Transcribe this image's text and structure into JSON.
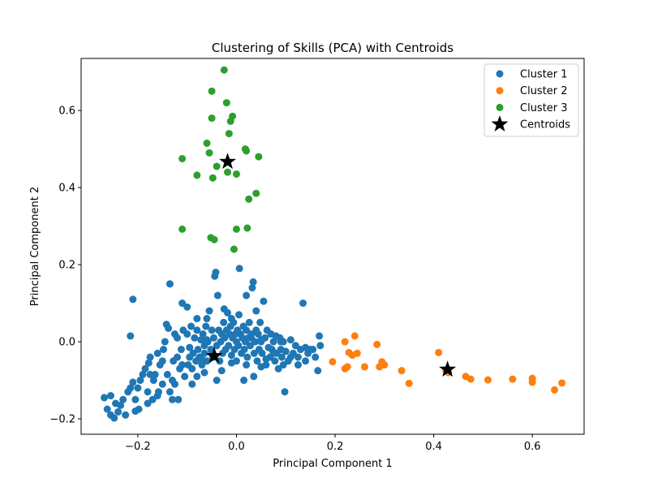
{
  "chart_data": {
    "type": "scatter",
    "title": "Clustering of Skills (PCA) with Centroids",
    "xlabel": "Principal Component 1",
    "ylabel": "Principal Component 2",
    "xlim": [
      -0.315,
      0.705
    ],
    "ylim": [
      -0.24,
      0.735
    ],
    "xticks": [
      -0.2,
      0.0,
      0.2,
      0.4,
      0.6
    ],
    "xtick_labels": [
      "−0.2",
      "0.0",
      "0.2",
      "0.4",
      "0.6"
    ],
    "yticks": [
      -0.2,
      0.0,
      0.2,
      0.4,
      0.6
    ],
    "ytick_labels": [
      "−0.2",
      "0.0",
      "0.2",
      "0.4",
      "0.6"
    ],
    "grid": false,
    "legend_position": "top-right",
    "series": [
      {
        "name": "Cluster 1",
        "color": "#1f77b4",
        "marker": "circle",
        "points": [
          [
            -0.268,
            -0.145
          ],
          [
            -0.262,
            -0.175
          ],
          [
            -0.255,
            -0.19
          ],
          [
            -0.248,
            -0.198
          ],
          [
            -0.24,
            -0.182
          ],
          [
            -0.235,
            -0.165
          ],
          [
            -0.23,
            -0.15
          ],
          [
            -0.225,
            -0.19
          ],
          [
            -0.22,
            -0.13
          ],
          [
            -0.215,
            -0.12
          ],
          [
            -0.21,
            -0.105
          ],
          [
            -0.205,
            -0.15
          ],
          [
            -0.2,
            -0.12
          ],
          [
            -0.198,
            -0.175
          ],
          [
            -0.195,
            -0.1
          ],
          [
            -0.19,
            -0.085
          ],
          [
            -0.185,
            -0.07
          ],
          [
            -0.18,
            -0.13
          ],
          [
            -0.178,
            -0.055
          ],
          [
            -0.175,
            -0.04
          ],
          [
            -0.17,
            -0.15
          ],
          [
            -0.168,
            -0.1
          ],
          [
            -0.165,
            -0.085
          ],
          [
            -0.16,
            -0.03
          ],
          [
            -0.158,
            -0.13
          ],
          [
            -0.155,
            -0.06
          ],
          [
            -0.15,
            -0.11
          ],
          [
            -0.148,
            -0.02
          ],
          [
            -0.145,
            0.0
          ],
          [
            -0.142,
            0.045
          ],
          [
            -0.14,
            -0.085
          ],
          [
            -0.138,
            0.035
          ],
          [
            -0.135,
            -0.13
          ],
          [
            -0.13,
            -0.1
          ],
          [
            -0.128,
            -0.05
          ],
          [
            -0.125,
            0.02
          ],
          [
            -0.12,
            -0.04
          ],
          [
            -0.118,
            -0.15
          ],
          [
            -0.115,
            -0.07
          ],
          [
            -0.112,
            -0.02
          ],
          [
            -0.11,
            0.1
          ],
          [
            -0.108,
            0.03
          ],
          [
            -0.105,
            -0.09
          ],
          [
            -0.1,
            0.09
          ],
          [
            -0.098,
            -0.06
          ],
          [
            -0.095,
            -0.015
          ],
          [
            -0.092,
            0.04
          ],
          [
            -0.09,
            -0.07
          ],
          [
            -0.088,
            -0.03
          ],
          [
            -0.085,
            0.01
          ],
          [
            -0.082,
            -0.05
          ],
          [
            -0.08,
            0.06
          ],
          [
            -0.078,
            -0.02
          ],
          [
            -0.075,
            -0.04
          ],
          [
            -0.072,
            0.005
          ],
          [
            -0.07,
            -0.06
          ],
          [
            -0.068,
            0.02
          ],
          [
            -0.065,
            -0.03
          ],
          [
            -0.062,
            0.04
          ],
          [
            -0.06,
            -0.05
          ],
          [
            -0.058,
            0.0
          ],
          [
            -0.055,
            0.08
          ],
          [
            -0.052,
            -0.02
          ],
          [
            -0.05,
            0.03
          ],
          [
            -0.048,
            -0.04
          ],
          [
            -0.046,
            0.01
          ],
          [
            -0.044,
            0.17
          ],
          [
            -0.042,
            0.18
          ],
          [
            -0.04,
            -0.01
          ],
          [
            -0.038,
            0.12
          ],
          [
            -0.036,
            0.03
          ],
          [
            -0.034,
            -0.05
          ],
          [
            -0.032,
            0.0
          ],
          [
            -0.03,
            0.02
          ],
          [
            -0.028,
            -0.03
          ],
          [
            -0.026,
            0.05
          ],
          [
            -0.024,
            0.01
          ],
          [
            -0.022,
            -0.02
          ],
          [
            -0.02,
            0.03
          ],
          [
            -0.018,
            0.075
          ],
          [
            -0.016,
            -0.01
          ],
          [
            -0.014,
            0.02
          ],
          [
            -0.012,
            0.04
          ],
          [
            -0.01,
            -0.035
          ],
          [
            -0.008,
            0.01
          ],
          [
            -0.006,
            0.05
          ],
          [
            -0.004,
            -0.02
          ],
          [
            -0.002,
            0.02
          ],
          [
            0.0,
            0.0
          ],
          [
            0.002,
            0.03
          ],
          [
            0.004,
            -0.01
          ],
          [
            0.006,
            0.19
          ],
          [
            0.008,
            0.02
          ],
          [
            0.01,
            -0.03
          ],
          [
            0.012,
            0.01
          ],
          [
            0.014,
            0.04
          ],
          [
            0.016,
            -0.02
          ],
          [
            0.018,
            0.0
          ],
          [
            0.02,
            0.03
          ],
          [
            0.022,
            -0.04
          ],
          [
            0.024,
            0.01
          ],
          [
            0.026,
            0.05
          ],
          [
            0.028,
            -0.01
          ],
          [
            0.03,
            0.02
          ],
          [
            0.032,
            0.14
          ],
          [
            0.034,
            0.155
          ],
          [
            0.036,
            -0.03
          ],
          [
            0.038,
            0.0
          ],
          [
            0.04,
            0.03
          ],
          [
            0.042,
            -0.05
          ],
          [
            0.044,
            0.02
          ],
          [
            0.046,
            -0.02
          ],
          [
            0.048,
            0.05
          ],
          [
            0.05,
            0.0
          ],
          [
            0.052,
            -0.03
          ],
          [
            0.055,
            0.105
          ],
          [
            0.058,
            0.01
          ],
          [
            0.06,
            -0.06
          ],
          [
            0.062,
            0.03
          ],
          [
            0.065,
            -0.015
          ],
          [
            0.068,
            -0.04
          ],
          [
            0.07,
            0.02
          ],
          [
            0.072,
            -0.02
          ],
          [
            0.075,
            0.0
          ],
          [
            0.078,
            -0.05
          ],
          [
            0.08,
            0.015
          ],
          [
            0.082,
            -0.03
          ],
          [
            0.085,
            -0.07
          ],
          [
            0.088,
            0.01
          ],
          [
            0.09,
            -0.02
          ],
          [
            0.092,
            -0.04
          ],
          [
            0.095,
            0.0
          ],
          [
            0.098,
            -0.13
          ],
          [
            0.1,
            -0.025
          ],
          [
            0.105,
            -0.05
          ],
          [
            0.11,
            0.005
          ],
          [
            0.115,
            -0.03
          ],
          [
            0.12,
            -0.01
          ],
          [
            0.125,
            -0.04
          ],
          [
            0.13,
            -0.02
          ],
          [
            0.135,
            0.1
          ],
          [
            0.14,
            -0.015
          ],
          [
            0.145,
            -0.03
          ],
          [
            0.15,
            -0.02
          ],
          [
            0.16,
            -0.04
          ],
          [
            0.165,
            -0.075
          ],
          [
            0.168,
            0.015
          ],
          [
            0.17,
            -0.01
          ],
          [
            -0.21,
            0.11
          ],
          [
            -0.215,
            0.015
          ],
          [
            -0.135,
            0.15
          ],
          [
            -0.06,
            0.005
          ],
          [
            -0.065,
            -0.01
          ],
          [
            0.05,
            0.005
          ],
          [
            0.09,
            0.0
          ],
          [
            0.03,
            0.01
          ],
          [
            -0.255,
            -0.14
          ],
          [
            -0.245,
            -0.16
          ],
          [
            -0.205,
            -0.18
          ],
          [
            -0.18,
            -0.16
          ],
          [
            -0.16,
            -0.14
          ],
          [
            -0.13,
            -0.15
          ],
          [
            -0.175,
            -0.085
          ],
          [
            -0.15,
            -0.05
          ],
          [
            -0.125,
            -0.11
          ],
          [
            -0.09,
            -0.11
          ],
          [
            -0.08,
            -0.09
          ],
          [
            -0.065,
            -0.08
          ],
          [
            -0.04,
            -0.1
          ],
          [
            -0.03,
            -0.075
          ],
          [
            -0.01,
            -0.055
          ],
          [
            0.0,
            -0.05
          ],
          [
            0.02,
            -0.06
          ],
          [
            0.035,
            -0.09
          ],
          [
            0.015,
            -0.1
          ],
          [
            0.05,
            -0.065
          ],
          [
            0.06,
            -0.045
          ],
          [
            0.075,
            -0.03
          ],
          [
            0.095,
            -0.06
          ],
          [
            0.11,
            -0.04
          ],
          [
            0.125,
            -0.06
          ],
          [
            0.14,
            -0.05
          ],
          [
            0.155,
            -0.02
          ],
          [
            -0.11,
            -0.06
          ],
          [
            -0.095,
            -0.04
          ],
          [
            -0.07,
            -0.045
          ],
          [
            -0.05,
            -0.03
          ],
          [
            -0.01,
            0.06
          ],
          [
            0.005,
            0.07
          ],
          [
            -0.025,
            0.085
          ],
          [
            0.02,
            0.12
          ],
          [
            0.04,
            0.08
          ],
          [
            -0.06,
            0.06
          ],
          [
            -0.08,
            0.03
          ],
          [
            -0.1,
            0.02
          ],
          [
            -0.12,
            0.01
          ]
        ]
      },
      {
        "name": "Cluster 2",
        "color": "#ff7f0e",
        "marker": "circle",
        "points": [
          [
            0.195,
            -0.052
          ],
          [
            0.22,
            0.0
          ],
          [
            0.225,
            -0.065
          ],
          [
            0.228,
            -0.028
          ],
          [
            0.235,
            -0.035
          ],
          [
            0.24,
            0.015
          ],
          [
            0.245,
            -0.03
          ],
          [
            0.26,
            -0.065
          ],
          [
            0.285,
            -0.007
          ],
          [
            0.29,
            -0.065
          ],
          [
            0.295,
            -0.052
          ],
          [
            0.3,
            -0.06
          ],
          [
            0.335,
            -0.075
          ],
          [
            0.35,
            -0.108
          ],
          [
            0.41,
            -0.028
          ],
          [
            0.425,
            -0.075
          ],
          [
            0.43,
            -0.08
          ],
          [
            0.465,
            -0.09
          ],
          [
            0.475,
            -0.097
          ],
          [
            0.51,
            -0.099
          ],
          [
            0.56,
            -0.097
          ],
          [
            0.6,
            -0.095
          ],
          [
            0.6,
            -0.105
          ],
          [
            0.645,
            -0.125
          ],
          [
            0.66,
            -0.107
          ],
          [
            0.22,
            -0.07
          ]
        ]
      },
      {
        "name": "Cluster 3",
        "color": "#2ca02c",
        "marker": "circle",
        "points": [
          [
            -0.11,
            0.475
          ],
          [
            -0.11,
            0.292
          ],
          [
            -0.08,
            0.432
          ],
          [
            -0.06,
            0.515
          ],
          [
            -0.055,
            0.49
          ],
          [
            -0.052,
            0.27
          ],
          [
            -0.05,
            0.65
          ],
          [
            -0.05,
            0.58
          ],
          [
            -0.048,
            0.425
          ],
          [
            -0.045,
            0.265
          ],
          [
            -0.04,
            0.455
          ],
          [
            -0.025,
            0.705
          ],
          [
            -0.02,
            0.62
          ],
          [
            -0.018,
            0.44
          ],
          [
            -0.015,
            0.54
          ],
          [
            -0.012,
            0.572
          ],
          [
            -0.008,
            0.585
          ],
          [
            -0.005,
            0.24
          ],
          [
            0.0,
            0.435
          ],
          [
            0.0,
            0.292
          ],
          [
            0.018,
            0.5
          ],
          [
            0.02,
            0.495
          ],
          [
            0.022,
            0.295
          ],
          [
            0.025,
            0.37
          ],
          [
            0.04,
            0.385
          ],
          [
            0.045,
            0.48
          ]
        ]
      },
      {
        "name": "Centroids",
        "color": "#000000",
        "marker": "star",
        "points": [
          [
            -0.045,
            -0.037
          ],
          [
            -0.018,
            0.467
          ],
          [
            0.428,
            -0.072
          ]
        ]
      }
    ]
  }
}
